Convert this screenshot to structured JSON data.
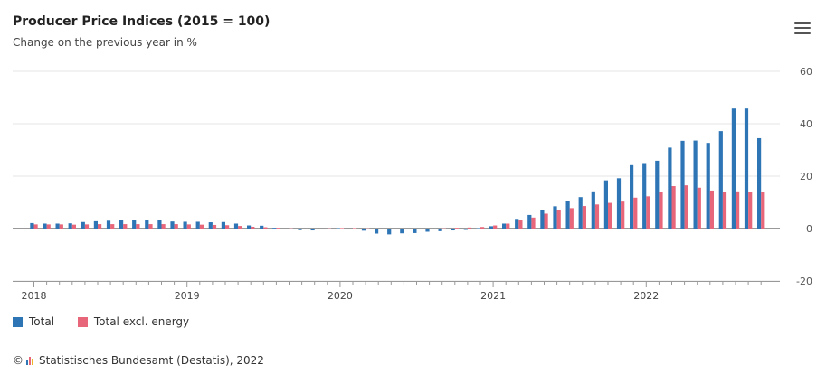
{
  "chart_data": {
    "type": "bar",
    "title": "Producer Price Indices (2015 = 100)",
    "subtitle": "Change on the previous year in %",
    "ylim": [
      -20,
      60
    ],
    "yticks": [
      60,
      40,
      20,
      0,
      -20
    ],
    "ytick_labels": [
      "60",
      "40",
      "20",
      "0",
      "-20"
    ],
    "x_year_labels": [
      "2018",
      "2019",
      "2020",
      "2021",
      "2022"
    ],
    "grid": true,
    "legend_position": "bottom-left",
    "categories": [
      "2018-01",
      "2018-02",
      "2018-03",
      "2018-04",
      "2018-05",
      "2018-06",
      "2018-07",
      "2018-08",
      "2018-09",
      "2018-10",
      "2018-11",
      "2018-12",
      "2019-01",
      "2019-02",
      "2019-03",
      "2019-04",
      "2019-05",
      "2019-06",
      "2019-07",
      "2019-08",
      "2019-09",
      "2019-10",
      "2019-11",
      "2019-12",
      "2020-01",
      "2020-02",
      "2020-03",
      "2020-04",
      "2020-05",
      "2020-06",
      "2020-07",
      "2020-08",
      "2020-09",
      "2020-10",
      "2020-11",
      "2020-12",
      "2021-01",
      "2021-02",
      "2021-03",
      "2021-04",
      "2021-05",
      "2021-06",
      "2021-07",
      "2021-08",
      "2021-09",
      "2021-10",
      "2021-11",
      "2021-12",
      "2022-01",
      "2022-02",
      "2022-03",
      "2022-04",
      "2022-05",
      "2022-06",
      "2022-07",
      "2022-08",
      "2022-09",
      "2022-10"
    ],
    "series": [
      {
        "name": "Total",
        "color": "#2e75b6",
        "values": [
          2.1,
          1.9,
          1.9,
          2.0,
          2.5,
          2.8,
          3.0,
          3.1,
          3.2,
          3.3,
          3.3,
          2.7,
          2.6,
          2.6,
          2.4,
          2.5,
          1.9,
          1.2,
          1.1,
          0.3,
          -0.1,
          -0.6,
          -0.7,
          -0.2,
          0.2,
          -0.1,
          -0.8,
          -1.9,
          -2.2,
          -1.8,
          -1.7,
          -1.2,
          -1.0,
          -0.7,
          -0.5,
          0.2,
          0.9,
          1.9,
          3.7,
          5.2,
          7.2,
          8.5,
          10.4,
          12.0,
          14.2,
          18.4,
          19.2,
          24.2,
          25.0,
          25.9,
          30.9,
          33.5,
          33.6,
          32.7,
          37.2,
          45.8,
          45.8,
          34.5
        ]
      },
      {
        "name": "Total excl. energy",
        "color": "#e8667a",
        "values": [
          1.6,
          1.6,
          1.6,
          1.5,
          1.6,
          1.7,
          1.7,
          1.7,
          1.7,
          1.7,
          1.7,
          1.7,
          1.6,
          1.5,
          1.4,
          1.3,
          1.0,
          0.7,
          0.5,
          0.3,
          0.1,
          0.0,
          0.0,
          0.1,
          0.2,
          0.2,
          0.1,
          -0.1,
          -0.1,
          -0.1,
          -0.1,
          0.0,
          0.1,
          0.3,
          0.4,
          0.6,
          1.2,
          1.9,
          3.1,
          4.2,
          5.7,
          6.9,
          7.8,
          8.6,
          9.2,
          9.8,
          10.3,
          11.8,
          12.3,
          14.1,
          16.2,
          16.5,
          15.6,
          14.5,
          14.1,
          14.2,
          13.9,
          13.9
        ]
      }
    ]
  },
  "legend": {
    "total_label": "Total",
    "excl_energy_label": "Total excl. energy"
  },
  "source": {
    "copyright_symbol": "©",
    "text": "Statistisches Bundesamt (Destatis), 2022"
  },
  "colors": {
    "total": "#2e75b6",
    "excl_energy": "#e8667a"
  },
  "icons": {
    "menu": "hamburger-menu-icon",
    "source_logo": "destatis-logo-icon"
  }
}
